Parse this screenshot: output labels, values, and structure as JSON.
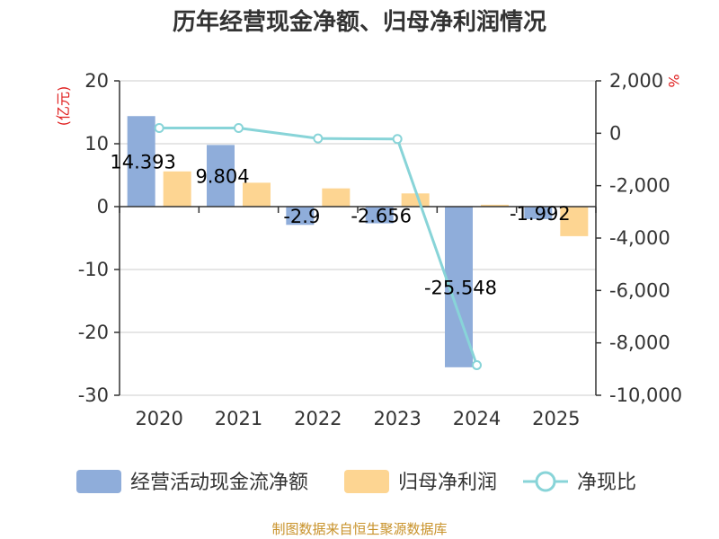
{
  "chart_data": {
    "type": "bar+line",
    "title": "历年经营现金净额、归母净利润情况",
    "categories": [
      "2020",
      "2021",
      "2022",
      "2023",
      "2024",
      "2025"
    ],
    "left_axis": {
      "unit": "(亿元)",
      "ylim": [
        -30,
        20
      ],
      "ticks": [
        20,
        10,
        0,
        -10,
        -20,
        -30
      ]
    },
    "right_axis": {
      "unit": "%",
      "ylim": [
        -10000,
        2000
      ],
      "ticks": [
        "2,000",
        "0",
        "-2,000",
        "-4,000",
        "-6,000",
        "-8,000",
        "-10,000"
      ]
    },
    "series": [
      {
        "name": "经营活动现金流净额",
        "type": "bar",
        "axis": "left",
        "color": "#8fadda",
        "values": [
          14.393,
          9.804,
          -2.9,
          -2.656,
          -25.548,
          -1.992
        ],
        "labels": [
          "14.393",
          "9.804",
          "-2.9",
          "-2.656",
          "-25.548",
          "-1.992"
        ]
      },
      {
        "name": "归母净利润",
        "type": "bar",
        "axis": "left",
        "color": "#fdd592",
        "values": [
          5.6,
          3.8,
          2.9,
          2.1,
          0.3,
          -4.7
        ]
      },
      {
        "name": "净现比",
        "type": "line",
        "axis": "right",
        "color": "#88d4d8",
        "values": [
          200,
          200,
          -200,
          -220,
          -8850,
          null
        ]
      }
    ]
  },
  "legend": {
    "items": [
      "经营活动现金流净额",
      "归母净利润",
      "净现比"
    ]
  },
  "source_text": "制图数据来自恒生聚源数据库"
}
